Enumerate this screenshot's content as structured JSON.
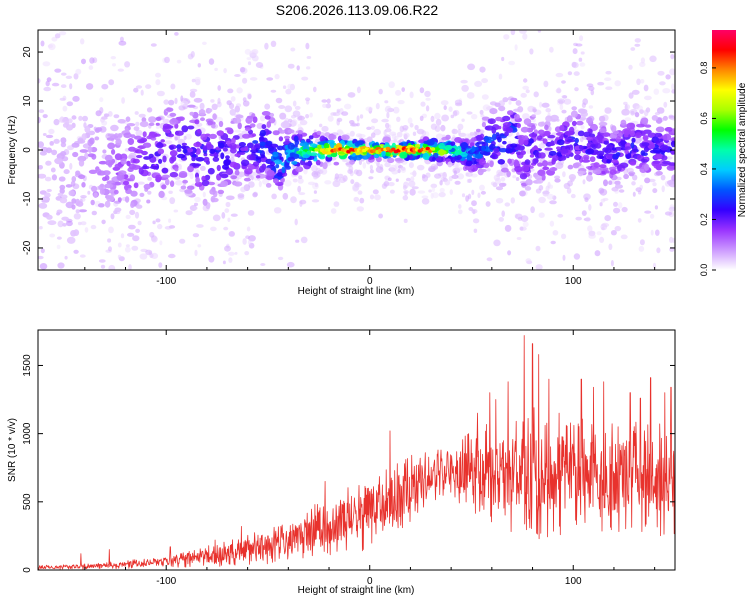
{
  "title": "S206.2026.113.09.06.R22",
  "chart_data": [
    {
      "type": "heatmap",
      "title": "S206.2026.113.09.06.R22",
      "xlabel": "Height of straight line (km)",
      "ylabel": "Frequency (Hz)",
      "xlim": [
        -163,
        150
      ],
      "ylim": [
        -24.5,
        24.5
      ],
      "xticks": [
        -100,
        0,
        100
      ],
      "yticks": [
        -20,
        -10,
        0,
        10,
        20
      ],
      "x_tick_labels": [
        "-100",
        "0",
        "100"
      ],
      "y_tick_labels": [
        "-20",
        "-10",
        "0",
        "10",
        "20"
      ],
      "ridge": {
        "x": [
          -163,
          -150,
          -140,
          -130,
          -120,
          -110,
          -100,
          -90,
          -80,
          -70,
          -60,
          -50,
          -45,
          -40,
          -30,
          -20,
          -10,
          0,
          10,
          20,
          30,
          40,
          50,
          55,
          60,
          65,
          70,
          75,
          80,
          85,
          90,
          95,
          100,
          110,
          120,
          130,
          140,
          150
        ],
        "center": [
          -3,
          -4,
          -5,
          -4,
          -3,
          -2,
          0,
          1,
          -2,
          -1,
          0,
          1,
          -3,
          -1,
          0,
          0,
          0,
          0,
          0,
          0,
          0,
          0,
          -1,
          0,
          2,
          1,
          4,
          -2,
          1,
          -1,
          0,
          1,
          2,
          0,
          -1,
          1,
          0,
          0
        ],
        "width": [
          14,
          12,
          10,
          8,
          7,
          6,
          6,
          6,
          6,
          5,
          5,
          5,
          4,
          3,
          2,
          1.5,
          1.2,
          1,
          1,
          1,
          1.2,
          1.5,
          2,
          3,
          4,
          5,
          5,
          5,
          4,
          4,
          4,
          4,
          4,
          4,
          4,
          4,
          4,
          4
        ],
        "peak": [
          0.05,
          0.07,
          0.1,
          0.12,
          0.16,
          0.2,
          0.24,
          0.25,
          0.25,
          0.25,
          0.26,
          0.28,
          0.35,
          0.4,
          0.55,
          0.75,
          0.85,
          0.75,
          0.8,
          0.85,
          0.8,
          0.5,
          0.4,
          0.32,
          0.3,
          0.28,
          0.3,
          0.25,
          0.25,
          0.25,
          0.24,
          0.25,
          0.25,
          0.25,
          0.25,
          0.25,
          0.25,
          0.25
        ]
      },
      "colorbar": {
        "label": "Normalized spectral amplitude",
        "range": [
          0.0,
          0.95
        ],
        "ticks": [
          0.0,
          0.2,
          0.4,
          0.6,
          0.8
        ],
        "tick_labels": [
          "0.0",
          "0.2",
          "0.4",
          "0.6",
          "0.8"
        ],
        "colors": [
          "#ffffff",
          "#cc99ff",
          "#9933ff",
          "#3300ff",
          "#0055ff",
          "#00ccff",
          "#00ffaa",
          "#00ff00",
          "#aaff00",
          "#ffff00",
          "#ff8800",
          "#ff0000",
          "#ff0066"
        ]
      }
    },
    {
      "type": "line",
      "xlabel": "Height of straight line (km)",
      "ylabel": "SNR (10 * v/v)",
      "xlim": [
        -163,
        150
      ],
      "ylim": [
        0,
        1760
      ],
      "xticks": [
        -100,
        0,
        100
      ],
      "yticks": [
        0,
        500,
        1000,
        1500
      ],
      "x_tick_labels": [
        "-100",
        "0",
        "100"
      ],
      "y_tick_labels": [
        "0",
        "500",
        "1000",
        "1500"
      ],
      "series": [
        {
          "name": "SNR",
          "color": "#e8322d",
          "envelope_x": [
            -163,
            -140,
            -120,
            -100,
            -80,
            -60,
            -50,
            -40,
            -30,
            -20,
            -10,
            0,
            10,
            20,
            30,
            40,
            50,
            60,
            70,
            80,
            90,
            100,
            110,
            120,
            130,
            140,
            150
          ],
          "envelope_mean": [
            20,
            25,
            40,
            60,
            100,
            150,
            170,
            200,
            280,
            330,
            360,
            430,
            480,
            600,
            700,
            740,
            720,
            700,
            680,
            700,
            680,
            700,
            700,
            680,
            680,
            700,
            660
          ],
          "envelope_amp": [
            15,
            20,
            30,
            40,
            80,
            120,
            130,
            150,
            180,
            220,
            250,
            280,
            300,
            250,
            200,
            220,
            300,
            400,
            450,
            500,
            450,
            400,
            420,
            400,
            420,
            450,
            420
          ],
          "spikes": [
            [
              -142,
              120
            ],
            [
              -128,
              150
            ],
            [
              -98,
              170
            ],
            [
              -76,
              220
            ],
            [
              -63,
              320
            ],
            [
              -50,
              250
            ],
            [
              -43,
              330
            ],
            [
              -22,
              650
            ],
            [
              -18,
              450
            ],
            [
              -4,
              460
            ],
            [
              10,
              1020
            ],
            [
              17,
              780
            ],
            [
              35,
              880
            ],
            [
              53,
              1150
            ],
            [
              59,
              1300
            ],
            [
              62,
              1250
            ],
            [
              68,
              1380
            ],
            [
              76,
              1720
            ],
            [
              80,
              1660
            ],
            [
              83,
              1580
            ],
            [
              88,
              1400
            ],
            [
              93,
              1150
            ],
            [
              104,
              1400
            ],
            [
              110,
              1340
            ],
            [
              115,
              1380
            ],
            [
              122,
              1050
            ],
            [
              128,
              1300
            ],
            [
              133,
              1260
            ],
            [
              138,
              1410
            ],
            [
              145,
              1300
            ],
            [
              148,
              1340
            ]
          ]
        }
      ]
    }
  ]
}
